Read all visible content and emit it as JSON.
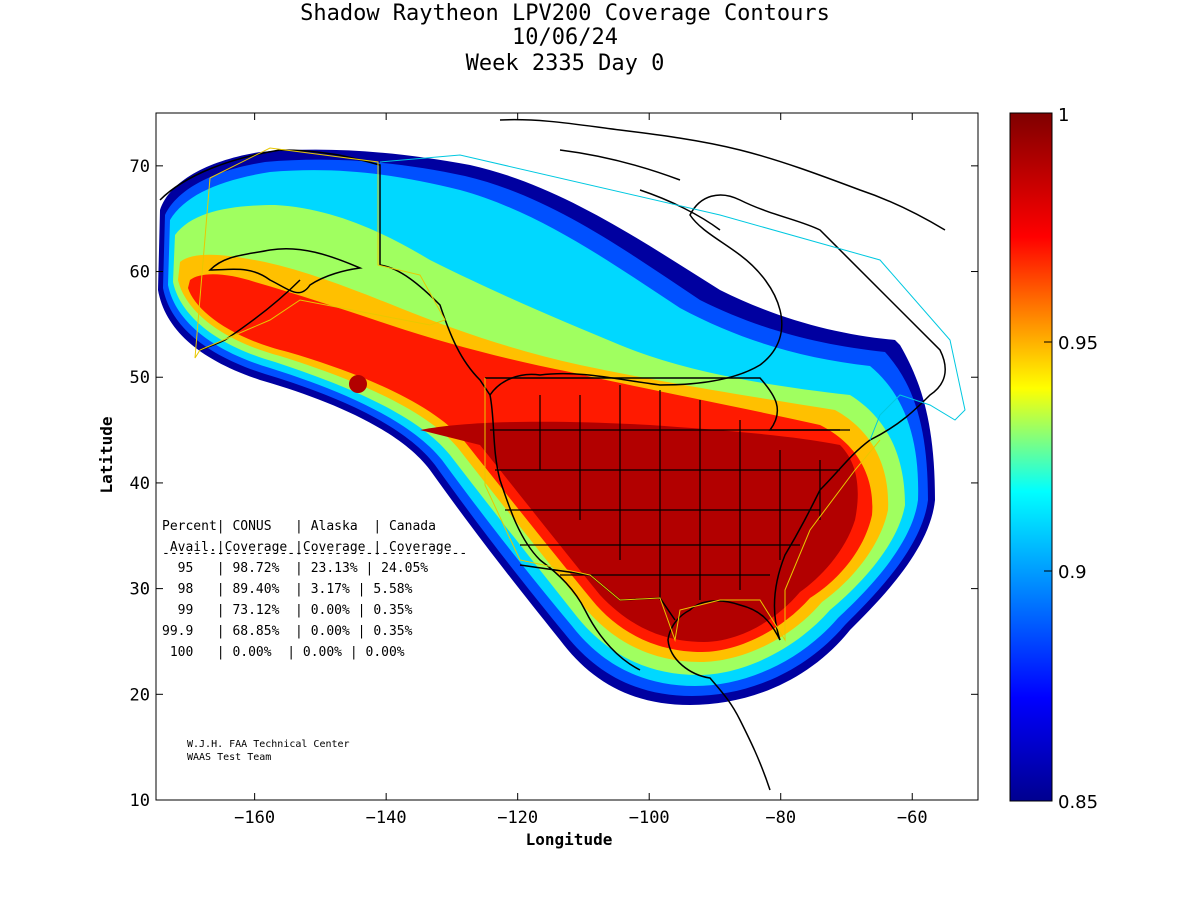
{
  "title": {
    "line1": "Shadow Raytheon LPV200 Coverage Contours",
    "line2": "10/06/24",
    "line3": "Week 2335 Day 0"
  },
  "axes": {
    "xlabel": "Longitude",
    "ylabel": "Latitude",
    "xlim": [
      -175,
      -50
    ],
    "ylim": [
      10,
      75
    ],
    "xticks": [
      -160,
      -140,
      -120,
      -100,
      -80,
      -60
    ],
    "yticks": [
      10,
      20,
      30,
      40,
      50,
      60,
      70
    ]
  },
  "colorbar": {
    "range": [
      0.85,
      1
    ],
    "labels": [
      "1",
      "0.95",
      "0.9",
      "0.85"
    ],
    "colors": [
      "#7f0000",
      "#ff0000",
      "#ffff00",
      "#00ffff",
      "#0000ff",
      "#00008f"
    ]
  },
  "stats_table": {
    "header1": "Percent| CONUS   | Alaska  | Canada",
    "header2": " Avail.|Coverage |Coverage | Coverage",
    "divider": "---------------------------------------",
    "rows": [
      "  95   | 98.72%  | 23.13% | 24.05%",
      "  98   | 89.40%  | 3.17% | 5.58%",
      "  99   | 73.12%  | 0.00% | 0.35%",
      "99.9   | 68.85%  | 0.00% | 0.35%",
      " 100   | 0.00%  | 0.00% | 0.00%"
    ]
  },
  "credits": {
    "line1": "W.J.H. FAA Technical Center",
    "line2": "WAAS Test Team"
  }
}
